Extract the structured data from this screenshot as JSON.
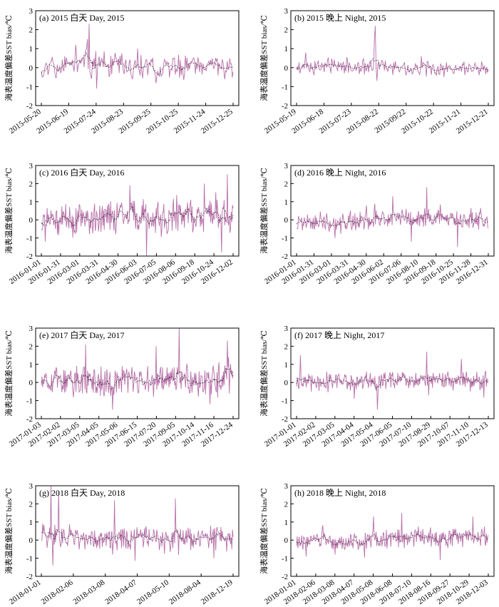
{
  "ylabel": "海表温度偏差SST bias/℃",
  "colors": {
    "series": "#a0408c",
    "series_light": "#c47ab4",
    "mean": "#2a1a2a",
    "axis": "#000000"
  },
  "chart_data": [
    {
      "type": "line",
      "title": "(a) 2015 白天 Day, 2015",
      "ylim": [
        -2,
        3
      ],
      "yticks": [
        -2,
        -1,
        0,
        1,
        2,
        3
      ],
      "xticks": [
        "2015-05-20",
        "2015-06-19",
        "2015-07-24",
        "2015-08-23",
        "2015-09-25",
        "2015-10-25",
        "2015-11-24",
        "2015-12-25"
      ],
      "n_points": 230,
      "baseline": [
        [
          0,
          0.05
        ],
        [
          0.15,
          0.1
        ],
        [
          0.25,
          0.35
        ],
        [
          0.35,
          0.05
        ],
        [
          0.55,
          0.0
        ],
        [
          0.7,
          -0.05
        ],
        [
          1,
          -0.05
        ]
      ],
      "amplitude": 0.55,
      "spikes": [
        [
          0.25,
          2.3
        ],
        [
          0.24,
          1.5
        ],
        [
          0.29,
          -1.1
        ],
        [
          0.18,
          1.2
        ],
        [
          0.5,
          1.0
        ]
      ],
      "seed": 11
    },
    {
      "type": "line",
      "title": "(b) 2015 晚上 Night, 2015",
      "ylim": [
        -2,
        3
      ],
      "yticks": [
        -2,
        -1,
        0,
        1,
        2,
        3
      ],
      "xticks": [
        "2015-05-19",
        "2015-06-18",
        "2015-07-23",
        "2015-08-22",
        "2015/09/22",
        "2015-10-22",
        "2015-11-21",
        "2015-12-21"
      ],
      "n_points": 230,
      "baseline": [
        [
          0,
          0.05
        ],
        [
          0.3,
          0.1
        ],
        [
          0.45,
          0.05
        ],
        [
          0.6,
          -0.05
        ],
        [
          0.8,
          -0.1
        ],
        [
          1,
          -0.05
        ]
      ],
      "amplitude": 0.35,
      "spikes": [
        [
          0.41,
          2.2
        ],
        [
          0.405,
          1.5
        ],
        [
          0.42,
          -0.7
        ],
        [
          0.05,
          0.8
        ],
        [
          0.65,
          0.6
        ]
      ],
      "seed": 23
    },
    {
      "type": "line",
      "title": "(c) 2016 白天 Day, 2016",
      "ylim": [
        -2,
        3
      ],
      "yticks": [
        -2,
        -1,
        0,
        1,
        2,
        3
      ],
      "xticks": [
        "2016-01-01",
        "2016-01-31",
        "2016-03-01",
        "2016-03-31",
        "2016-04-30",
        "2016-06-03",
        "2016-07-05",
        "2016-08-06",
        "2016-09-18",
        "2016-10-24",
        "2016-12-02"
      ],
      "n_points": 300,
      "baseline": [
        [
          0,
          -0.1
        ],
        [
          0.2,
          0.0
        ],
        [
          0.35,
          0.2
        ],
        [
          0.5,
          0.3
        ],
        [
          0.65,
          0.1
        ],
        [
          0.8,
          0.2
        ],
        [
          1,
          0.1
        ]
      ],
      "amplitude": 0.8,
      "spikes": [
        [
          0.97,
          2.5
        ],
        [
          0.94,
          -1.8
        ],
        [
          0.55,
          -2.0
        ],
        [
          0.46,
          1.9
        ],
        [
          0.85,
          2.0
        ],
        [
          0.02,
          -1.2
        ]
      ],
      "seed": 37
    },
    {
      "type": "line",
      "title": "(d) 2016 晚上 Night, 2016",
      "ylim": [
        -2,
        3
      ],
      "yticks": [
        -2,
        -1,
        0,
        1,
        2,
        3
      ],
      "xticks": [
        "2016-01-01",
        "2016-01-31",
        "2016-03-01",
        "2016-03-31",
        "2016-04-30",
        "2016-06-02",
        "2016-07-06",
        "2016-08-10",
        "2016-09-18",
        "2016-10-25",
        "2016-11-28",
        "2016-12-31"
      ],
      "n_points": 300,
      "baseline": [
        [
          0,
          -0.15
        ],
        [
          0.3,
          -0.05
        ],
        [
          0.5,
          0.05
        ],
        [
          0.7,
          0.1
        ],
        [
          1,
          -0.05
        ]
      ],
      "amplitude": 0.45,
      "spikes": [
        [
          0.68,
          1.8
        ],
        [
          0.6,
          -1.2
        ],
        [
          0.84,
          -1.5
        ],
        [
          0.5,
          1.3
        ],
        [
          0.2,
          -1.0
        ]
      ],
      "seed": 41
    },
    {
      "type": "line",
      "title": "(e) 2017 白天 Day, 2017",
      "ylim": [
        -2,
        3
      ],
      "yticks": [
        -2,
        -1,
        0,
        1,
        2,
        3
      ],
      "xticks": [
        "2017-01-03",
        "2017-02-02",
        "2017-03-05",
        "2017-04-05",
        "2017-05-06",
        "2017-06-15",
        "2017-07-20",
        "2017-09-05",
        "2017-10-14",
        "2017-11-16",
        "2017-12-24"
      ],
      "n_points": 300,
      "baseline": [
        [
          0,
          0.1
        ],
        [
          0.2,
          0.0
        ],
        [
          0.4,
          0.1
        ],
        [
          0.6,
          0.2
        ],
        [
          0.8,
          0.15
        ],
        [
          1,
          0.1
        ]
      ],
      "amplitude": 0.75,
      "spikes": [
        [
          0.72,
          3.0
        ],
        [
          0.23,
          2.1
        ],
        [
          0.97,
          2.3
        ],
        [
          0.37,
          -1.5
        ],
        [
          0.88,
          -1.2
        ],
        [
          0.6,
          2.0
        ]
      ],
      "seed": 53
    },
    {
      "type": "line",
      "title": "(f) 2017 晚上 Night, 2017",
      "ylim": [
        -2,
        3
      ],
      "yticks": [
        -2,
        -1,
        0,
        1,
        2,
        3
      ],
      "xticks": [
        "2017-01-01",
        "2017-02-02",
        "2017-03-05",
        "2017-04-04",
        "2017-05-04",
        "2017-06-05",
        "2017-07-10",
        "2017-08-29",
        "2017-10-07",
        "2017-11-10",
        "2017-12-13"
      ],
      "n_points": 300,
      "baseline": [
        [
          0,
          0.05
        ],
        [
          0.3,
          0.0
        ],
        [
          0.5,
          0.1
        ],
        [
          0.7,
          0.1
        ],
        [
          1,
          0.05
        ]
      ],
      "amplitude": 0.45,
      "spikes": [
        [
          0.42,
          -1.5
        ],
        [
          0.68,
          1.7
        ],
        [
          0.02,
          1.5
        ],
        [
          0.86,
          1.3
        ],
        [
          0.3,
          -0.9
        ]
      ],
      "seed": 61
    },
    {
      "type": "line",
      "title": "(g) 2018 白天 Day, 2018",
      "ylim": [
        -2,
        3
      ],
      "yticks": [
        -2,
        -1,
        0,
        1,
        2,
        3
      ],
      "xticks": [
        "2018-01-01",
        "2018-02-06",
        "2018-03-08",
        "2018-04-07",
        "2018-05-10",
        "2018-08-04",
        "2018-12-19"
      ],
      "n_points": 300,
      "baseline": [
        [
          0,
          0.3
        ],
        [
          0.1,
          0.2
        ],
        [
          0.3,
          0.0
        ],
        [
          0.5,
          0.05
        ],
        [
          0.75,
          0.1
        ],
        [
          1,
          0.1
        ]
      ],
      "amplitude": 0.6,
      "spikes": [
        [
          0.05,
          3.0
        ],
        [
          0.09,
          2.7
        ],
        [
          0.38,
          2.2
        ],
        [
          0.7,
          2.3
        ],
        [
          0.06,
          -1.4
        ],
        [
          0.9,
          -1.0
        ]
      ],
      "seed": 71
    },
    {
      "type": "line",
      "title": "(h) 2018 晚上 Night, 2018",
      "ylim": [
        -2,
        3
      ],
      "yticks": [
        -2,
        -1,
        0,
        1,
        2,
        3
      ],
      "xticks": [
        "2018-01-01",
        "2018-02-06",
        "2018-03-08",
        "2018-04-07",
        "2018-05-08",
        "2018-06-08",
        "2018-07-10",
        "2018-08-16",
        "2018-09-27",
        "2018-10-29",
        "2018-12-03"
      ],
      "n_points": 300,
      "baseline": [
        [
          0,
          -0.05
        ],
        [
          0.2,
          -0.1
        ],
        [
          0.4,
          0.05
        ],
        [
          0.6,
          0.15
        ],
        [
          0.8,
          0.1
        ],
        [
          1,
          0.05
        ]
      ],
      "amplitude": 0.45,
      "spikes": [
        [
          0.55,
          1.5
        ],
        [
          0.75,
          -1.1
        ],
        [
          0.92,
          1.3
        ],
        [
          0.4,
          1.3
        ],
        [
          0.2,
          -0.8
        ]
      ],
      "seed": 83
    }
  ]
}
